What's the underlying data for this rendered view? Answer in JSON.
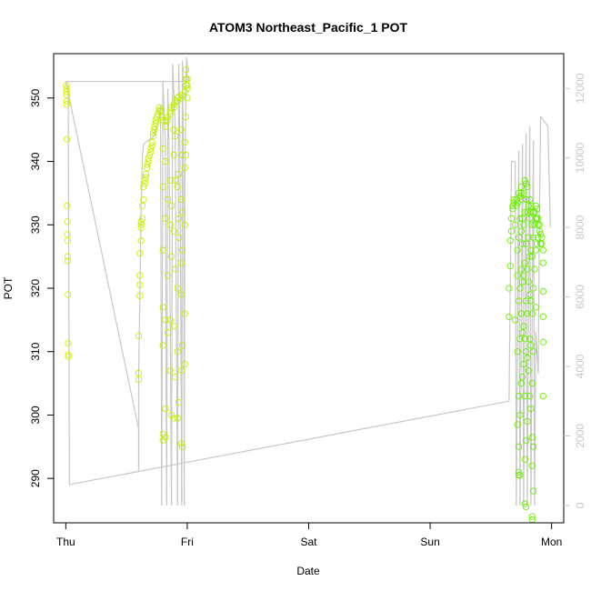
{
  "chart_data": {
    "type": "scatter",
    "title": "ATOM3 Northeast_Pacific_1 POT",
    "xlabel": "Date",
    "ylabel": "POT",
    "x_tick_labels": [
      "Thu",
      "Fri",
      "Sat",
      "Sun",
      "Mon"
    ],
    "xlim_days": [
      -0.1,
      4.1
    ],
    "ylim": [
      283,
      357
    ],
    "y_ticks": [
      290,
      300,
      310,
      320,
      330,
      340,
      350
    ],
    "right_axis": {
      "label": "",
      "ticks": [
        0,
        2000,
        4000,
        6000,
        8000,
        10000,
        12000
      ],
      "ylim": [
        -500,
        13000
      ],
      "color": "#c8c8c8"
    },
    "colors": {
      "altitude_line": "#c8c8c8",
      "points_start": "#d8f000",
      "points_end": "#66ee00"
    },
    "series": [
      {
        "type": "scatter",
        "points": [
          [
            0.005,
            351.5
          ],
          [
            0.005,
            352
          ],
          [
            0.006,
            351.0
          ],
          [
            0.007,
            350.5
          ],
          [
            0.007,
            349.5
          ],
          [
            0.008,
            349
          ],
          [
            0.01,
            343.5
          ],
          [
            0.012,
            333
          ],
          [
            0.013,
            330.5
          ],
          [
            0.014,
            328.5
          ],
          [
            0.015,
            327.5
          ],
          [
            0.016,
            325
          ],
          [
            0.017,
            324.3
          ],
          [
            0.018,
            319
          ],
          [
            0.02,
            311.3
          ],
          [
            0.021,
            309.5
          ],
          [
            0.022,
            309.2
          ],
          [
            0.6,
            305.6
          ],
          [
            0.6,
            306.6
          ],
          [
            0.6,
            312.5
          ],
          [
            0.61,
            318.8
          ],
          [
            0.61,
            320.5
          ],
          [
            0.61,
            322
          ],
          [
            0.61,
            325.5
          ],
          [
            0.62,
            327.5
          ],
          [
            0.62,
            329.5
          ],
          [
            0.62,
            330
          ],
          [
            0.62,
            330.5
          ],
          [
            0.63,
            331
          ],
          [
            0.63,
            333
          ],
          [
            0.64,
            334
          ],
          [
            0.64,
            336
          ],
          [
            0.65,
            336.5
          ],
          [
            0.65,
            337
          ],
          [
            0.66,
            337.5
          ],
          [
            0.66,
            338
          ],
          [
            0.67,
            339
          ],
          [
            0.67,
            339.5
          ],
          [
            0.68,
            340
          ],
          [
            0.68,
            340.5
          ],
          [
            0.69,
            341
          ],
          [
            0.7,
            341.5
          ],
          [
            0.7,
            342
          ],
          [
            0.71,
            342.5
          ],
          [
            0.71,
            343
          ],
          [
            0.72,
            344
          ],
          [
            0.72,
            344.5
          ],
          [
            0.73,
            345
          ],
          [
            0.73,
            345.5
          ],
          [
            0.74,
            346
          ],
          [
            0.74,
            346.5
          ],
          [
            0.75,
            347
          ],
          [
            0.76,
            347.5
          ],
          [
            0.77,
            348
          ],
          [
            0.77,
            348.5
          ],
          [
            0.78,
            348
          ],
          [
            0.79,
            347
          ],
          [
            0.8,
            346.5
          ],
          [
            0.8,
            342
          ],
          [
            0.8,
            336
          ],
          [
            0.8,
            326
          ],
          [
            0.8,
            317
          ],
          [
            0.8,
            311
          ],
          [
            0.8,
            297
          ],
          [
            0.8,
            296
          ],
          [
            0.82,
            346.5
          ],
          [
            0.82,
            345.5
          ],
          [
            0.82,
            340
          ],
          [
            0.82,
            331
          ],
          [
            0.82,
            315
          ],
          [
            0.82,
            301
          ],
          [
            0.82,
            296.5
          ],
          [
            0.84,
            347
          ],
          [
            0.84,
            346.5
          ],
          [
            0.84,
            334
          ],
          [
            0.84,
            322
          ],
          [
            0.84,
            313
          ],
          [
            0.86,
            348
          ],
          [
            0.86,
            347.5
          ],
          [
            0.86,
            337
          ],
          [
            0.86,
            330
          ],
          [
            0.86,
            315
          ],
          [
            0.86,
            307
          ],
          [
            0.87,
            348.5
          ],
          [
            0.87,
            333
          ],
          [
            0.87,
            325
          ],
          [
            0.87,
            300
          ],
          [
            0.89,
            349
          ],
          [
            0.89,
            348.5
          ],
          [
            0.89,
            345
          ],
          [
            0.89,
            341
          ],
          [
            0.89,
            329
          ],
          [
            0.89,
            314
          ],
          [
            0.89,
            299.5
          ],
          [
            0.9,
            349.5
          ],
          [
            0.9,
            344
          ],
          [
            0.9,
            337
          ],
          [
            0.9,
            323
          ],
          [
            0.9,
            306
          ],
          [
            0.92,
            350
          ],
          [
            0.92,
            349.5
          ],
          [
            0.92,
            336
          ],
          [
            0.92,
            320
          ],
          [
            0.92,
            310
          ],
          [
            0.92,
            299.5
          ],
          [
            0.93,
            350.2
          ],
          [
            0.93,
            338
          ],
          [
            0.93,
            331
          ],
          [
            0.93,
            328
          ],
          [
            0.93,
            302
          ],
          [
            0.95,
            350
          ],
          [
            0.95,
            345
          ],
          [
            0.95,
            334
          ],
          [
            0.95,
            324
          ],
          [
            0.95,
            319
          ],
          [
            0.95,
            307
          ],
          [
            0.95,
            295.5
          ],
          [
            0.96,
            350.5
          ],
          [
            0.96,
            341
          ],
          [
            0.96,
            332
          ],
          [
            0.96,
            326
          ],
          [
            0.96,
            311
          ],
          [
            0.96,
            295
          ],
          [
            0.98,
            351
          ],
          [
            0.98,
            343
          ],
          [
            0.98,
            339
          ],
          [
            0.98,
            330
          ],
          [
            0.98,
            316
          ],
          [
            0.98,
            308
          ],
          [
            0.99,
            352
          ],
          [
            0.99,
            353
          ],
          [
            0.99,
            354.5
          ],
          [
            0.99,
            347
          ],
          [
            0.99,
            341
          ],
          [
            1.0,
            351.5
          ],
          [
            1.0,
            353
          ],
          [
            1.0,
            352
          ],
          [
            1.0,
            350
          ],
          [
            3.65,
            315.5
          ],
          [
            3.65,
            320
          ],
          [
            3.66,
            323.5
          ],
          [
            3.66,
            327.5
          ],
          [
            3.67,
            329
          ],
          [
            3.67,
            331
          ],
          [
            3.68,
            332.5
          ],
          [
            3.68,
            333
          ],
          [
            3.69,
            334
          ],
          [
            3.69,
            333.5
          ],
          [
            3.7,
            315
          ],
          [
            3.7,
            330
          ],
          [
            3.71,
            334
          ],
          [
            3.71,
            333
          ],
          [
            3.72,
            298.5
          ],
          [
            3.72,
            310
          ],
          [
            3.72,
            322
          ],
          [
            3.72,
            326
          ],
          [
            3.72,
            333.5
          ],
          [
            3.73,
            291
          ],
          [
            3.73,
            290.5
          ],
          [
            3.73,
            295
          ],
          [
            3.73,
            303
          ],
          [
            3.73,
            318
          ],
          [
            3.73,
            328
          ],
          [
            3.73,
            335
          ],
          [
            3.74,
            290.5
          ],
          [
            3.74,
            300
          ],
          [
            3.74,
            312
          ],
          [
            3.74,
            320
          ],
          [
            3.74,
            331
          ],
          [
            3.74,
            334.5
          ],
          [
            3.75,
            305
          ],
          [
            3.75,
            316
          ],
          [
            3.75,
            323
          ],
          [
            3.75,
            329
          ],
          [
            3.75,
            335
          ],
          [
            3.75,
            336
          ],
          [
            3.76,
            306
          ],
          [
            3.76,
            313
          ],
          [
            3.76,
            321
          ],
          [
            3.76,
            327
          ],
          [
            3.76,
            331
          ],
          [
            3.76,
            334
          ],
          [
            3.77,
            308
          ],
          [
            3.77,
            314
          ],
          [
            3.77,
            322
          ],
          [
            3.77,
            330
          ],
          [
            3.77,
            335
          ],
          [
            3.78,
            286
          ],
          [
            3.78,
            293
          ],
          [
            3.78,
            303
          ],
          [
            3.78,
            312
          ],
          [
            3.78,
            324
          ],
          [
            3.78,
            332
          ],
          [
            3.78,
            337
          ],
          [
            3.79,
            285.5
          ],
          [
            3.79,
            296
          ],
          [
            3.79,
            310
          ],
          [
            3.79,
            318
          ],
          [
            3.79,
            327
          ],
          [
            3.79,
            334
          ],
          [
            3.79,
            336.5
          ],
          [
            3.8,
            299
          ],
          [
            3.8,
            309
          ],
          [
            3.8,
            316
          ],
          [
            3.8,
            323
          ],
          [
            3.8,
            332
          ],
          [
            3.8,
            336
          ],
          [
            3.81,
            307
          ],
          [
            3.81,
            321
          ],
          [
            3.81,
            328
          ],
          [
            3.81,
            333
          ],
          [
            3.82,
            303
          ],
          [
            3.82,
            312
          ],
          [
            3.82,
            319
          ],
          [
            3.82,
            325
          ],
          [
            3.82,
            331
          ],
          [
            3.82,
            334
          ],
          [
            3.83,
            301
          ],
          [
            3.83,
            311
          ],
          [
            3.83,
            318
          ],
          [
            3.83,
            326
          ],
          [
            3.83,
            332
          ],
          [
            3.83,
            333
          ],
          [
            3.84,
            283.5
          ],
          [
            3.84,
            284
          ],
          [
            3.84,
            292
          ],
          [
            3.84,
            296.5
          ],
          [
            3.84,
            305
          ],
          [
            3.84,
            316
          ],
          [
            3.84,
            325
          ],
          [
            3.84,
            330
          ],
          [
            3.85,
            288
          ],
          [
            3.85,
            295
          ],
          [
            3.85,
            310
          ],
          [
            3.85,
            320
          ],
          [
            3.85,
            328
          ],
          [
            3.85,
            332
          ],
          [
            3.86,
            323
          ],
          [
            3.86,
            330
          ],
          [
            3.86,
            332
          ],
          [
            3.87,
            317
          ],
          [
            3.87,
            326
          ],
          [
            3.87,
            331
          ],
          [
            3.87,
            333
          ],
          [
            3.88,
            327
          ],
          [
            3.88,
            331
          ],
          [
            3.88,
            332.5
          ],
          [
            3.89,
            328
          ],
          [
            3.89,
            330
          ],
          [
            3.89,
            331
          ],
          [
            3.9,
            329
          ],
          [
            3.9,
            330
          ],
          [
            3.91,
            328.5
          ],
          [
            3.91,
            327
          ],
          [
            3.92,
            327
          ],
          [
            3.92,
            328
          ],
          [
            3.93,
            326
          ],
          [
            3.93,
            324
          ],
          [
            3.93,
            319.5
          ],
          [
            3.93,
            315.5
          ],
          [
            3.93,
            311.5
          ],
          [
            3.93,
            303
          ]
        ]
      }
    ]
  }
}
